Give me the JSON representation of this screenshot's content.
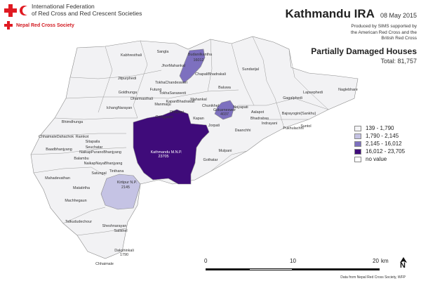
{
  "header": {
    "org_name": "International Federation\nof Red Cross and Red Crescent Societies",
    "nrcs": "Nepal Red Cross Society",
    "title": "Kathmandu IRA",
    "date": "08 May 2015",
    "produced": "Produced by SIMS supported by\nthe American Red Cross and the\nBritish Red Cross",
    "subtitle": "Partially Damaged Houses",
    "total": "Total: 81,757"
  },
  "legend": [
    {
      "label": "139 - 1,790",
      "color": "#f4f4f6"
    },
    {
      "label": "1,790 - 2,145",
      "color": "#c5c3e4"
    },
    {
      "label": "2,145 - 16,012",
      "color": "#7d70bf"
    },
    {
      "label": "16,012 - 23,705",
      "color": "#3f0b7a"
    },
    {
      "label": "no value",
      "color": "#ffffff"
    }
  ],
  "map": {
    "colors": {
      "low": "#f2f2f4",
      "light": "#c5c3e4",
      "mid": "#7d70bf",
      "dark": "#3f0b7a",
      "border": "#8a8a8a"
    },
    "highlighted": [
      {
        "name": "Budanilkantha",
        "value": "16012",
        "class": "2,145 - 16,012"
      },
      {
        "name": "Gokarneswor",
        "value": "4037",
        "class": "2,145 - 16,012"
      },
      {
        "name": "Kathmandu M.N.P.",
        "value": "23705",
        "class": "16,012 - 23,705"
      },
      {
        "name": "Kirtipur N.P.",
        "value": "2145",
        "class": "1,790 - 2,145"
      },
      {
        "name": "Dakshinkali",
        "value": "1790",
        "class": "139 - 1,790"
      }
    ],
    "labels": {
      "kabhresthali": "Kabhresthali",
      "sangla": "Sangla",
      "budanilkantha": "Budanilkantha",
      "budanilkantha_value": "16012",
      "jhormahankal": "JhorMahankal",
      "sundarijal": "Sundarijal",
      "jitpurphedi": "Jitpurphedi",
      "chapalibhadrakali": "ChapaliBhadrakali",
      "tokhachandeswori": "TokhaChandeswori",
      "futung": "Futung",
      "goldhunga": "Goldhunga",
      "tokhasaraswoti": "TokhaSaraswoti",
      "baluwa": "Baluwa",
      "lapsephedi": "Lapsephedi",
      "naglebhare": "Naglebhare",
      "gagalphedi": "Gagalphedi",
      "dharmasthali": "Dharmasthali",
      "mahankal": "Mahankal",
      "manmaiju": "Manmaiju",
      "kapanbhadrakali": "KapanBhadrakali",
      "chunikhel": "Chunikhel",
      "ichangnarayan": "IchangNarayan",
      "dhapasi": "Dhapasi",
      "kapan": "Kapan",
      "nayapati": "Nayapati",
      "aalapot": "Aalapot",
      "bajrayogini": "Bajrayogini(Sankhu)",
      "gonggabu": "Gonggabu",
      "gokarneswor": "Gokarneswor",
      "gokarneswor_value": "4037",
      "bhadrabas": "Bhadrabas",
      "indrayani": "Indrayani",
      "bhimdhunga": "Bhimdhunga",
      "jorpati": "Jorpati",
      "pukhulachhi": "Pukhulachhi",
      "suntol": "Suntol",
      "chhaimale_dahachok": "ChhaimaleDahachok",
      "daanchhi": "Daanchhi",
      "ramkot": "Ramkot",
      "sitapaila": "Sitapaila",
      "kathmandu": "Kathmandu M.N.P.",
      "kathmandu_value": "23705",
      "mulpani": "Mulpani",
      "seuchatar": "Seuchatar",
      "naikap_purano": "NaikapPuranoBhanjyang",
      "baadbhanjyang": "Baadbhanjyang",
      "balambu": "Balambu",
      "naikap_naya": "NaikapNayaBhanjyang",
      "gothatar": "Gothatar",
      "satungal": "Satungal",
      "tinthana": "Tinthana",
      "mahadevathan": "Mahadevathan",
      "matatirtha": "Matatirtha",
      "kirtipur": "Kirtipur N.P.",
      "kirtipur_value": "2145",
      "machhegaun": "Machhegaun",
      "talkududechour": "Talkududechour",
      "sheshnarayan": "Sheshnarayan",
      "satikhel": "Satikhel",
      "dakshinkali": "Dakshinkali",
      "dakshinkali_value": "1790",
      "chhaimale": "Chhaimale"
    }
  },
  "scalebar": {
    "ticks": [
      "0",
      "10",
      "20"
    ],
    "unit": "km"
  },
  "north": "N",
  "credit": "Data from Nepal Red Cross Society, WFP"
}
